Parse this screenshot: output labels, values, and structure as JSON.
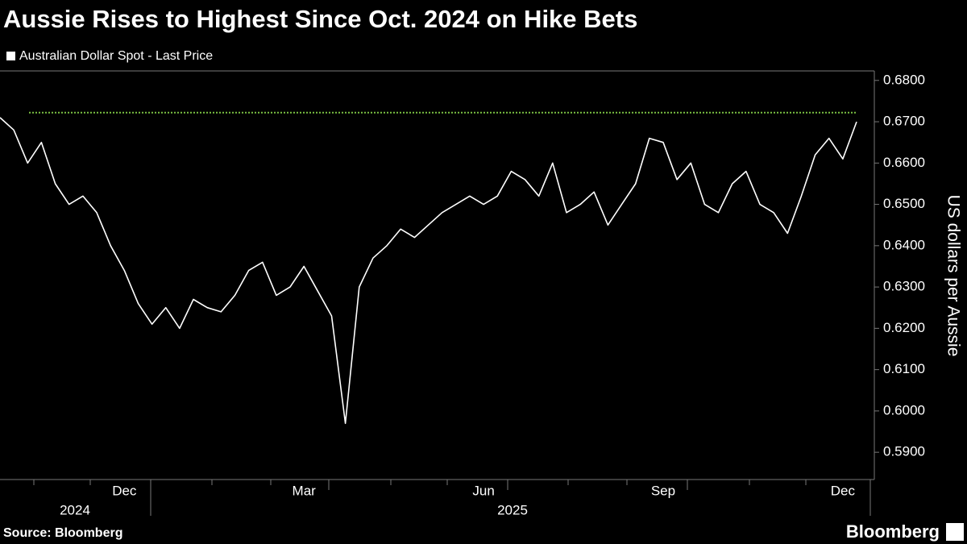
{
  "chart_data": {
    "type": "line",
    "title": "Aussie Rises to Highest Since Oct. 2024 on Hike Bets",
    "y_axis_label": "US dollars per Aussie",
    "source": "Source: Bloomberg",
    "brand": "Bloomberg",
    "years": [
      "2024",
      "2025"
    ],
    "categories": [
      null,
      null,
      null,
      null,
      null,
      null,
      null,
      null,
      null,
      "Dec",
      null,
      null,
      null,
      null,
      null,
      null,
      null,
      null,
      null,
      null,
      null,
      null,
      "Mar",
      null,
      null,
      null,
      null,
      null,
      null,
      null,
      null,
      null,
      null,
      null,
      null,
      "Jun",
      null,
      null,
      null,
      null,
      null,
      null,
      null,
      null,
      null,
      null,
      null,
      null,
      "Sep",
      null,
      null,
      null,
      null,
      null,
      null,
      null,
      null,
      null,
      null,
      null,
      null,
      "Dec",
      null
    ],
    "series": [
      {
        "name": "Australian Dollar Spot - Last Price",
        "color": "#ffffff",
        "values": [
          0.671,
          0.668,
          0.66,
          0.665,
          0.655,
          0.65,
          0.652,
          0.648,
          0.64,
          0.634,
          0.626,
          0.621,
          0.625,
          0.62,
          0.627,
          0.625,
          0.624,
          0.628,
          0.634,
          0.636,
          0.628,
          0.63,
          0.635,
          0.629,
          0.623,
          0.597,
          0.63,
          0.637,
          0.64,
          0.644,
          0.642,
          0.645,
          0.648,
          0.65,
          0.652,
          0.65,
          0.652,
          0.658,
          0.656,
          0.652,
          0.66,
          0.648,
          0.65,
          0.653,
          0.645,
          0.65,
          0.655,
          0.666,
          0.665,
          0.656,
          0.66,
          0.65,
          0.648,
          0.655,
          0.658,
          0.65,
          0.648,
          0.643,
          0.652,
          0.662,
          0.666,
          0.661,
          0.67
        ]
      }
    ],
    "reference_level": 0.6722,
    "reference_color": "#7ac143",
    "ylim": [
      0.5834,
      0.6823
    ],
    "yticks": [
      {
        "value": 0.59,
        "label": "0.5900"
      },
      {
        "value": 0.6,
        "label": "0.6000"
      },
      {
        "value": 0.61,
        "label": "0.6100"
      },
      {
        "value": 0.62,
        "label": "0.6200"
      },
      {
        "value": 0.63,
        "label": "0.6300"
      },
      {
        "value": 0.64,
        "label": "0.6400"
      },
      {
        "value": 0.65,
        "label": "0.6500"
      },
      {
        "value": 0.66,
        "label": "0.6600"
      },
      {
        "value": 0.67,
        "label": "0.6700"
      },
      {
        "value": 0.68,
        "label": "0.6800"
      }
    ]
  }
}
